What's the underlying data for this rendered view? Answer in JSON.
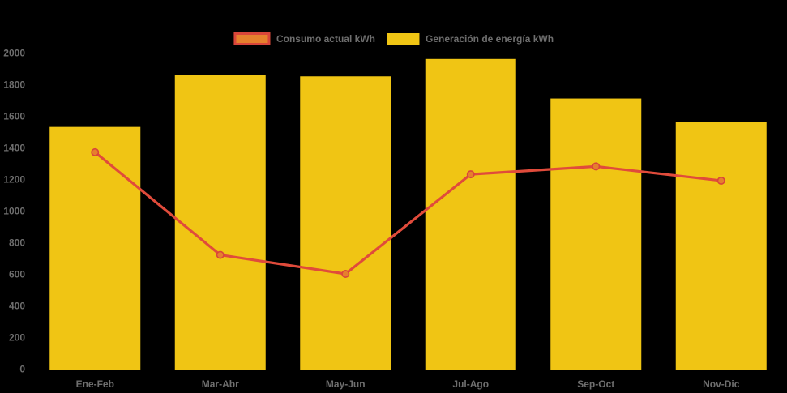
{
  "page": {
    "background": "#000000",
    "axis_label_color": "#6E6E6E",
    "legend_label_color": "#6E6E6E"
  },
  "legend": {
    "position": "top-center",
    "consumo_swatch": {
      "fill": "#E6802D",
      "border": "#D9453A"
    },
    "generacion_swatch": {
      "fill": "#F0C514"
    }
  },
  "chart_data": {
    "type": "bar",
    "categories": [
      "Ene-Feb",
      "Mar-Abr",
      "May-Jun",
      "Jul-Ago",
      "Sep-Oct",
      "Nov-Dic"
    ],
    "series": [
      {
        "name": "Consumo actual kWh",
        "kind": "line",
        "values": [
          1370,
          720,
          600,
          1230,
          1280,
          1190
        ],
        "color": "#E04B3B",
        "marker_fill": "#E6802D",
        "marker_stroke": "#D9453A"
      },
      {
        "name": "Generación de energía kWh",
        "kind": "bar",
        "values": [
          1530,
          1860,
          1850,
          1960,
          1710,
          1560
        ],
        "color": "#F0C514"
      }
    ],
    "title": "",
    "xlabel": "",
    "ylabel": "",
    "ylim": [
      0,
      2000
    ],
    "ytick_step": 200,
    "yticks": [
      "0",
      "200",
      "400",
      "600",
      "800",
      "1000",
      "1200",
      "1400",
      "1600",
      "1800",
      "2000"
    ],
    "grid": false,
    "legend_position": "top"
  }
}
